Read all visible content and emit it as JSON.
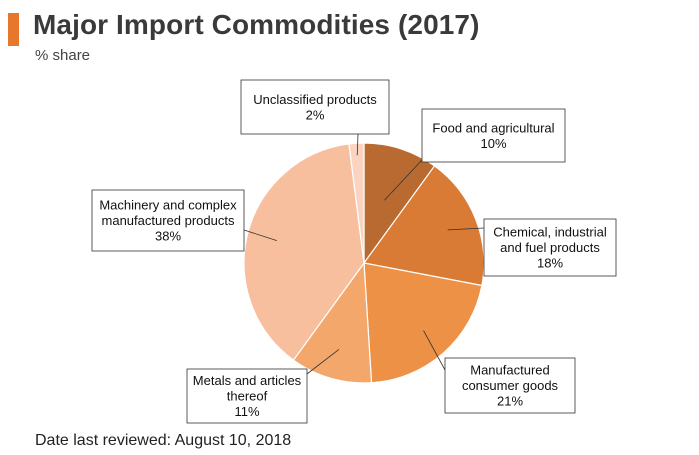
{
  "header": {
    "title": "Major Import Commodities (2017)",
    "subtitle": "% share",
    "accent_color": "#e8772e"
  },
  "footer": {
    "text": "Date last reviewed: August 10, 2018"
  },
  "chart_data": {
    "type": "pie",
    "title": "Major Import Commodities (2017)",
    "subtitle": "% share",
    "start_angle_deg": 0,
    "direction": "clockwise",
    "slices": [
      {
        "label": [
          "Food and agricultural"
        ],
        "value": 10,
        "value_label": "10%",
        "color": "#b86a30"
      },
      {
        "label": [
          "Chemical, industrial",
          "and fuel products"
        ],
        "value": 18,
        "value_label": "18%",
        "color": "#d97a35"
      },
      {
        "label": [
          "Manufactured",
          "consumer goods"
        ],
        "value": 21,
        "value_label": "21%",
        "color": "#ec9145"
      },
      {
        "label": [
          "Metals and articles",
          "thereof"
        ],
        "value": 11,
        "value_label": "11%",
        "color": "#f4a76a"
      },
      {
        "label": [
          "Machinery and complex",
          "manufactured products"
        ],
        "value": 38,
        "value_label": "38%",
        "color": "#f7bf9d"
      },
      {
        "label": [
          "Unclassified products"
        ],
        "value": 2,
        "value_label": "2%",
        "color": "#fad3c1"
      }
    ]
  }
}
